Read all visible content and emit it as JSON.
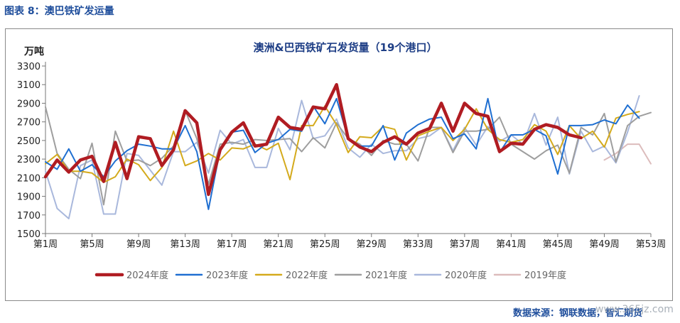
{
  "figure_caption": "图表 8：澳巴铁矿发运量",
  "source_text": "数据来源：钢联数据，智汇期货",
  "watermark_text": "www.365jz.com",
  "chart_data": {
    "type": "line",
    "title": "澳洲&巴西铁矿石发货量（19个港口）",
    "unit": "万吨",
    "ylim": [
      1500,
      3300
    ],
    "yticks": [
      1500,
      1700,
      1900,
      2100,
      2300,
      2500,
      2700,
      2900,
      3100,
      3300
    ],
    "xlim": [
      1,
      53
    ],
    "xtick_labels": [
      "第1周",
      "第5周",
      "第9周",
      "第13周",
      "第17周",
      "第21周",
      "第25周",
      "第29周",
      "第33周",
      "第37周",
      "第41周",
      "第45周",
      "第49周",
      "第53周"
    ],
    "grid": false,
    "legend_position": "bottom",
    "series": [
      {
        "name": "2024年度",
        "color": "#b01c22",
        "width": 4.5,
        "values": [
          2110,
          2290,
          2160,
          2290,
          2330,
          2060,
          2480,
          2090,
          2540,
          2520,
          2230,
          2400,
          2820,
          2690,
          1920,
          2400,
          2590,
          2690,
          2440,
          2460,
          2750,
          2640,
          2620,
          2860,
          2840,
          3100,
          2520,
          2430,
          2380,
          2480,
          2540,
          2460,
          2580,
          2630,
          2900,
          2600,
          2900,
          2790,
          2760,
          2380,
          2470,
          2460,
          2620,
          2670,
          2640,
          2560,
          2530
        ]
      },
      {
        "name": "2023年度",
        "color": "#1f6fd1",
        "width": 2,
        "values": [
          2270,
          2190,
          2410,
          2170,
          2240,
          2110,
          2280,
          2390,
          2460,
          2440,
          2410,
          2410,
          2660,
          2380,
          1760,
          2400,
          2590,
          2610,
          2370,
          2470,
          2510,
          2620,
          2600,
          2870,
          2680,
          2950,
          2520,
          2440,
          2440,
          2660,
          2290,
          2580,
          2670,
          2730,
          2750,
          2520,
          2570,
          2410,
          2950,
          2370,
          2560,
          2560,
          2620,
          2550,
          2140,
          2660,
          2660,
          2670,
          2720,
          2680,
          2880,
          2740
        ]
      },
      {
        "name": "2022年度",
        "color": "#d4aa1c",
        "width": 2,
        "values": [
          2250,
          2350,
          2170,
          2170,
          2150,
          2050,
          2110,
          2300,
          2240,
          2070,
          2210,
          2600,
          2230,
          2280,
          2360,
          2290,
          2420,
          2410,
          2460,
          2400,
          2470,
          2080,
          2660,
          2660,
          2870,
          2670,
          2370,
          2540,
          2530,
          2650,
          2620,
          2290,
          2550,
          2600,
          2640,
          2500,
          2620,
          2840,
          2620,
          2510,
          2480,
          2510,
          2670,
          2600,
          2350,
          2660,
          2520,
          2600,
          2430,
          2740,
          2780,
          2810
        ]
      },
      {
        "name": "2021年度",
        "color": "#9e9e9e",
        "width": 2,
        "values": [
          2860,
          2360,
          2190,
          2090,
          2470,
          1810,
          2600,
          2280,
          2290,
          2230,
          2310,
          2440,
          2820,
          2520,
          2030,
          2460,
          2480,
          2460,
          2510,
          2500,
          2510,
          2520,
          2380,
          2530,
          2420,
          2690,
          2520,
          2460,
          2340,
          2500,
          2460,
          2460,
          2280,
          2640,
          2640,
          2370,
          2600,
          2600,
          2620,
          2750,
          2460,
          2380,
          2300,
          2390,
          2450,
          2150,
          2640,
          2560,
          2790,
          2270,
          2660,
          2760,
          2800
        ]
      },
      {
        "name": "2020年度",
        "color": "#a9b8dc",
        "width": 2,
        "values": [
          2170,
          1770,
          1660,
          2230,
          2290,
          1710,
          1710,
          2360,
          2340,
          2180,
          2020,
          2380,
          2380,
          2480,
          2150,
          2610,
          2460,
          2510,
          2210,
          2210,
          2630,
          2400,
          2930,
          2520,
          2550,
          2730,
          2420,
          2320,
          2460,
          2360,
          2390,
          2390,
          2520,
          2550,
          2640,
          2390,
          2640,
          2450,
          2650,
          2490,
          2560,
          2460,
          2790,
          2450,
          2750,
          2140,
          2600,
          2380,
          2440,
          2260,
          2590,
          2980
        ]
      },
      {
        "name": "2019年度",
        "color": "#dcbcbc",
        "width": 2,
        "start_week": 49,
        "values": [
          2290,
          2360,
          2460,
          2460,
          2250
        ]
      }
    ]
  }
}
